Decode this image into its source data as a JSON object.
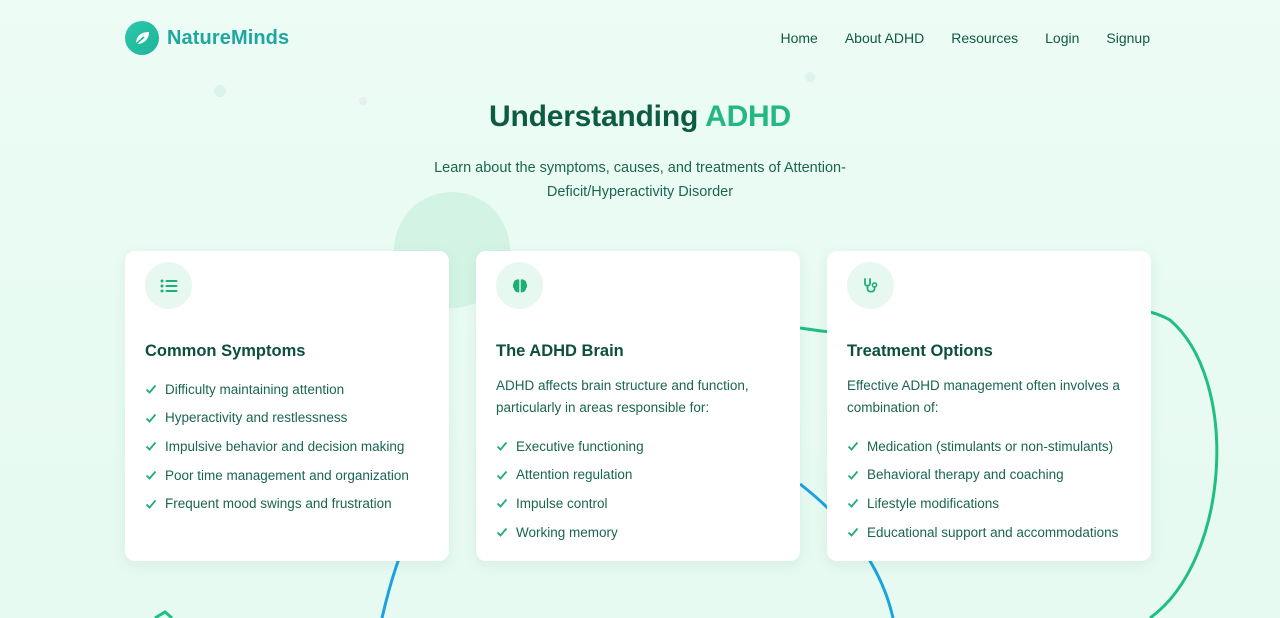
{
  "nav": {
    "brand": "NatureMinds",
    "brand_icon": "leaf-icon",
    "links": [
      "Home",
      "About ADHD",
      "Resources",
      "Login",
      "Signup"
    ]
  },
  "hero": {
    "title_main": "Understanding",
    "title_accent": "ADHD",
    "subtitle": "Learn about the symptoms, causes, and treatments of Attention-Deficit/Hyperactivity Disorder"
  },
  "cards": [
    {
      "icon": "list-icon",
      "title": "Common Symptoms",
      "intro": "",
      "items": [
        "Difficulty maintaining attention",
        "Hyperactivity and restlessness",
        "Impulsive behavior and decision making",
        "Poor time management and organization",
        "Frequent mood swings and frustration"
      ]
    },
    {
      "icon": "brain-icon",
      "title": "The ADHD Brain",
      "intro": "ADHD affects brain structure and function, particularly in areas responsible for:",
      "items": [
        "Executive functioning",
        "Attention regulation",
        "Impulse control",
        "Working memory"
      ]
    },
    {
      "icon": "stethoscope-icon",
      "title": "Treatment Options",
      "intro": "Effective ADHD management often involves a combination of:",
      "items": [
        "Medication (stimulants or non-stimulants)",
        "Behavioral therapy and coaching",
        "Lifestyle modifications",
        "Educational support and accommodations"
      ]
    }
  ],
  "colors": {
    "accent": "#23b883",
    "heading": "#0d5b42",
    "brand": "#1ea7a0",
    "curve_green": "#1fbf82",
    "curve_blue": "#1aa3e0"
  }
}
